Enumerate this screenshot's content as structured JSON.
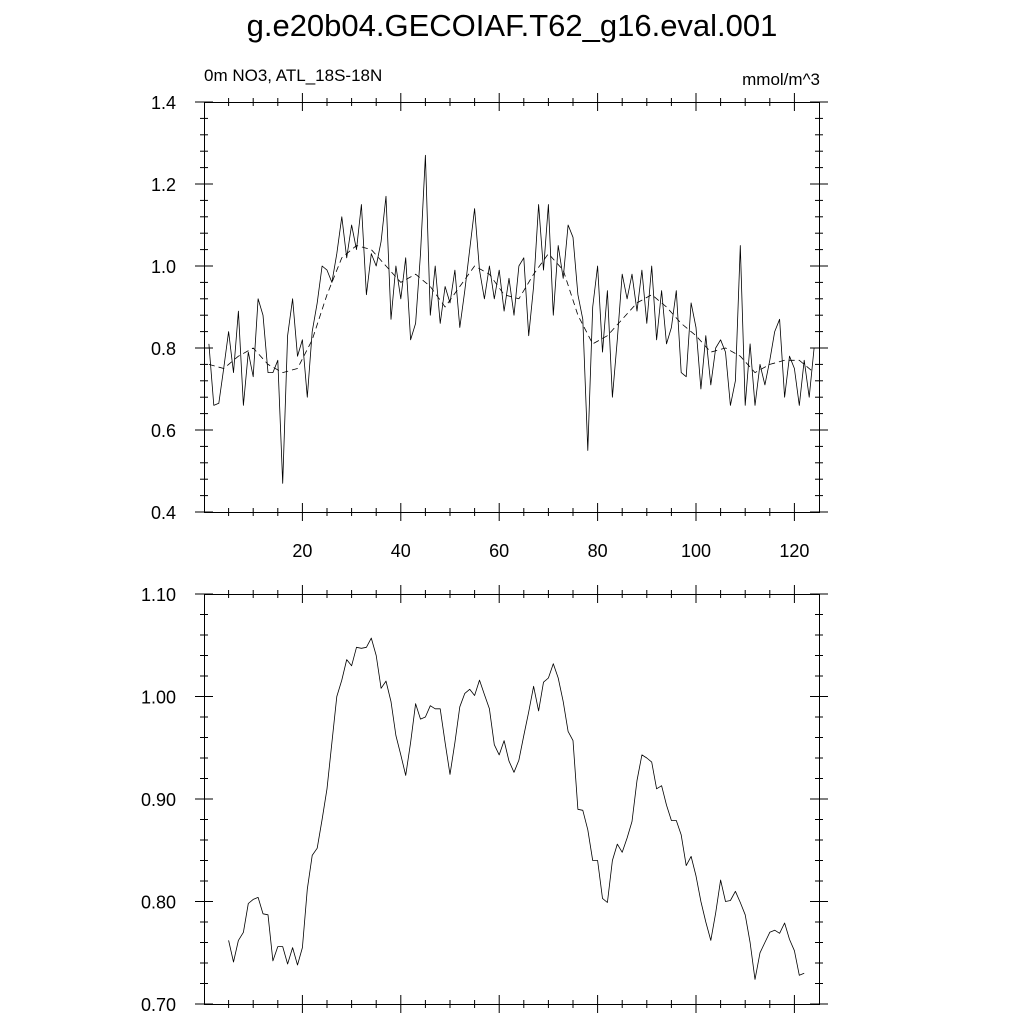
{
  "title": "g.e20b04.GECOIAF.T62_g16.eval.001",
  "subtitle_left": "0m NO3, ATL_18S-18N",
  "subtitle_right": "mmol/m^3",
  "chart_data": [
    {
      "type": "line",
      "xlim": [
        0,
        125
      ],
      "ylim": [
        0.4,
        1.4
      ],
      "x_ticks": [
        20,
        40,
        60,
        80,
        100,
        120
      ],
      "x_tick_labels": [
        "20",
        "40",
        "60",
        "80",
        "100",
        "120"
      ],
      "y_ticks": [
        0.4,
        0.6,
        0.8,
        1.0,
        1.2,
        1.4
      ],
      "y_tick_labels": [
        "0.4",
        "0.6",
        "0.8",
        "1.0",
        "1.2",
        "1.4"
      ],
      "grid": false,
      "series": [
        {
          "style": "solid",
          "x": [
            1,
            2,
            3,
            4,
            5,
            6,
            7,
            8,
            9,
            10,
            11,
            12,
            13,
            14,
            15,
            16,
            17,
            18,
            19,
            20,
            21,
            22,
            23,
            24,
            25,
            26,
            27,
            28,
            29,
            30,
            31,
            32,
            33,
            34,
            35,
            36,
            37,
            38,
            39,
            40,
            41,
            42,
            43,
            44,
            45,
            46,
            47,
            48,
            49,
            50,
            51,
            52,
            53,
            54,
            55,
            56,
            57,
            58,
            59,
            60,
            61,
            62,
            63,
            64,
            65,
            66,
            67,
            68,
            69,
            70,
            71,
            72,
            73,
            74,
            75,
            76,
            77,
            78,
            79,
            80,
            81,
            82,
            83,
            84,
            85,
            86,
            87,
            88,
            89,
            90,
            91,
            92,
            93,
            94,
            95,
            96,
            97,
            98,
            99,
            100,
            101,
            102,
            103,
            104,
            105,
            106,
            107,
            108,
            109,
            110,
            111,
            112,
            113,
            114,
            115,
            116,
            117,
            118,
            119,
            120,
            121,
            122,
            123,
            124
          ],
          "y": [
            0.81,
            0.66,
            0.665,
            0.75,
            0.84,
            0.74,
            0.89,
            0.66,
            0.79,
            0.73,
            0.92,
            0.88,
            0.74,
            0.74,
            0.77,
            0.47,
            0.83,
            0.92,
            0.78,
            0.82,
            0.68,
            0.84,
            0.91,
            1.0,
            0.99,
            0.96,
            1.03,
            1.12,
            1.02,
            1.1,
            1.04,
            1.15,
            0.93,
            1.03,
            1.0,
            1.06,
            1.17,
            0.87,
            1.0,
            0.92,
            1.02,
            0.82,
            0.86,
            1.03,
            1.27,
            0.88,
            1.0,
            0.86,
            0.95,
            0.91,
            0.99,
            0.85,
            0.94,
            1.04,
            1.14,
            0.99,
            0.92,
            1.0,
            0.92,
            0.99,
            0.89,
            0.97,
            0.88,
            1.0,
            1.02,
            0.83,
            0.95,
            1.15,
            0.99,
            1.15,
            0.88,
            1.05,
            0.97,
            1.1,
            1.07,
            0.93,
            0.87,
            0.55,
            0.9,
            1.0,
            0.79,
            0.94,
            0.68,
            0.82,
            0.98,
            0.92,
            0.98,
            0.89,
            0.99,
            0.86,
            1.0,
            0.82,
            0.94,
            0.81,
            0.85,
            0.94,
            0.74,
            0.73,
            0.91,
            0.85,
            0.7,
            0.83,
            0.71,
            0.8,
            0.82,
            0.79,
            0.66,
            0.72,
            1.05,
            0.66,
            0.81,
            0.66,
            0.76,
            0.71,
            0.77,
            0.84,
            0.87,
            0.68,
            0.78,
            0.75,
            0.66,
            0.77,
            0.68,
            0.8
          ]
        },
        {
          "style": "dashed",
          "x": [
            1,
            4,
            7,
            10,
            13,
            16,
            19,
            22,
            25,
            28,
            31,
            34,
            37,
            40,
            43,
            46,
            49,
            52,
            55,
            58,
            61,
            64,
            67,
            70,
            73,
            76,
            79,
            82,
            85,
            88,
            91,
            94,
            97,
            100,
            103,
            106,
            109,
            112,
            115,
            118,
            121,
            124
          ],
          "y": [
            0.76,
            0.75,
            0.78,
            0.8,
            0.76,
            0.74,
            0.75,
            0.82,
            0.93,
            1.02,
            1.05,
            1.04,
            1.0,
            0.96,
            0.98,
            0.95,
            0.9,
            0.95,
            1.0,
            0.98,
            0.93,
            0.92,
            0.98,
            1.03,
            0.99,
            0.88,
            0.81,
            0.83,
            0.87,
            0.91,
            0.93,
            0.9,
            0.86,
            0.83,
            0.79,
            0.8,
            0.78,
            0.74,
            0.76,
            0.77,
            0.77,
            0.74
          ]
        }
      ]
    },
    {
      "type": "line",
      "xlim": [
        0,
        125
      ],
      "ylim": [
        0.7,
        1.1
      ],
      "y_ticks": [
        0.7,
        0.8,
        0.9,
        1.0,
        1.1
      ],
      "y_tick_labels": [
        "0.70",
        "0.80",
        "0.90",
        "1.00",
        "1.10"
      ],
      "grid": false,
      "series": [
        {
          "style": "solid",
          "x": [
            5,
            6,
            7,
            8,
            9,
            10,
            11,
            12,
            13,
            14,
            15,
            16,
            17,
            18,
            19,
            20,
            21,
            22,
            23,
            24,
            25,
            26,
            27,
            28,
            29,
            30,
            31,
            32,
            33,
            34,
            35,
            36,
            37,
            38,
            39,
            40,
            41,
            42,
            43,
            44,
            45,
            46,
            47,
            48,
            49,
            50,
            51,
            52,
            53,
            54,
            55,
            56,
            57,
            58,
            59,
            60,
            61,
            62,
            63,
            64,
            65,
            66,
            67,
            68,
            69,
            70,
            71,
            72,
            73,
            74,
            75,
            76,
            77,
            78,
            79,
            80,
            81,
            82,
            83,
            84,
            85,
            86,
            87,
            88,
            89,
            90,
            91,
            92,
            93,
            94,
            95,
            96,
            97,
            98,
            99,
            100,
            101,
            102,
            103,
            104,
            105,
            106,
            107,
            108,
            109,
            110,
            111,
            112,
            113,
            114,
            115,
            116,
            117,
            118,
            119,
            120,
            121,
            122
          ],
          "y": [
            0.762,
            0.741,
            0.762,
            0.77,
            0.798,
            0.802,
            0.804,
            0.788,
            0.787,
            0.742,
            0.756,
            0.756,
            0.739,
            0.755,
            0.738,
            0.755,
            0.812,
            0.845,
            0.852,
            0.88,
            0.91,
            0.955,
            1.0,
            1.016,
            1.036,
            1.03,
            1.048,
            1.047,
            1.048,
            1.057,
            1.04,
            1.008,
            1.015,
            0.995,
            0.962,
            0.943,
            0.923,
            0.955,
            0.993,
            0.978,
            0.98,
            0.991,
            0.988,
            0.988,
            0.955,
            0.924,
            0.955,
            0.99,
            1.003,
            1.007,
            1.001,
            1.016,
            1.002,
            0.988,
            0.953,
            0.943,
            0.957,
            0.937,
            0.926,
            0.938,
            0.962,
            0.985,
            1.01,
            0.986,
            1.014,
            1.018,
            1.032,
            1.018,
            0.995,
            0.966,
            0.957,
            0.89,
            0.889,
            0.87,
            0.84,
            0.84,
            0.803,
            0.799,
            0.84,
            0.856,
            0.848,
            0.862,
            0.878,
            0.918,
            0.943,
            0.94,
            0.936,
            0.91,
            0.913,
            0.894,
            0.879,
            0.879,
            0.865,
            0.835,
            0.844,
            0.825,
            0.8,
            0.78,
            0.762,
            0.789,
            0.821,
            0.8,
            0.801,
            0.81,
            0.799,
            0.787,
            0.76,
            0.724,
            0.75,
            0.76,
            0.77,
            0.772,
            0.769,
            0.779,
            0.763,
            0.752,
            0.728,
            0.73
          ]
        }
      ]
    }
  ]
}
